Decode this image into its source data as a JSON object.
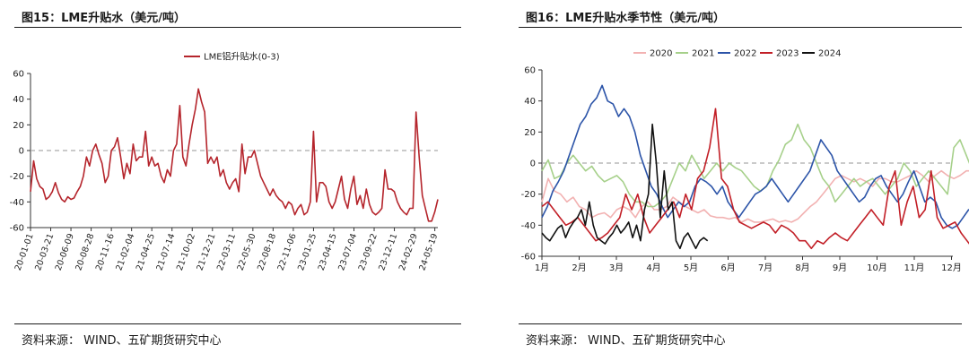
{
  "panels": [
    {
      "title": "图15：LME升贴水（美元/吨）",
      "source": "资料来源： WIND、五矿期货研究中心",
      "chart_data": {
        "type": "line",
        "legend_position": "top",
        "ylim": [
          -60,
          60
        ],
        "yticks": [
          60,
          40,
          20,
          0,
          -20,
          -40,
          -60
        ],
        "xticks": [
          "20-01-01",
          "20-03-21",
          "20-06-09",
          "20-08-28",
          "20-11-16",
          "21-02-04",
          "21-04-25",
          "21-07-14",
          "21-10-02",
          "21-12-21",
          "22-03-11",
          "22-05-30",
          "22-08-18",
          "22-11-06",
          "23-01-25",
          "23-04-15",
          "23-07-04",
          "23-09-22",
          "23-12-11",
          "24-02-29",
          "24-05-19"
        ],
        "zero_line": true,
        "series": [
          {
            "name": "LME铝升贴水(0-3)",
            "color": "#b5252c",
            "x_start": "2020-01-01",
            "x_end": "2024-05-31",
            "values": [
              -32,
              -8,
              -22,
              -28,
              -30,
              -38,
              -36,
              -32,
              -25,
              -33,
              -38,
              -40,
              -36,
              -38,
              -37,
              -32,
              -28,
              -20,
              -5,
              -12,
              0,
              5,
              -3,
              -10,
              -25,
              -20,
              0,
              3,
              10,
              -5,
              -22,
              -10,
              -18,
              5,
              -8,
              -5,
              -5,
              15,
              -12,
              -5,
              -12,
              -10,
              -20,
              -25,
              -15,
              -20,
              0,
              5,
              35,
              -5,
              -12,
              5,
              20,
              32,
              48,
              38,
              30,
              -10,
              -5,
              -10,
              -5,
              -20,
              -15,
              -25,
              -30,
              -25,
              -22,
              -32,
              5,
              -18,
              -5,
              -5,
              0,
              -10,
              -20,
              -25,
              -30,
              -35,
              -30,
              -35,
              -38,
              -40,
              -45,
              -40,
              -42,
              -50,
              -45,
              -42,
              -50,
              -48,
              -40,
              15,
              -40,
              -25,
              -25,
              -28,
              -40,
              -45,
              -40,
              -30,
              -20,
              -38,
              -45,
              -30,
              -20,
              -42,
              -35,
              -45,
              -30,
              -42,
              -48,
              -50,
              -48,
              -45,
              -15,
              -30,
              -30,
              -32,
              -40,
              -45,
              -48,
              -50,
              -45,
              -45,
              30,
              -5,
              -35,
              -45,
              -55,
              -55,
              -48,
              -38
            ]
          }
        ]
      }
    },
    {
      "title": "图16：LME升贴水季节性（美元/吨）",
      "source": "资料来源： WIND、五矿期货研究中心",
      "chart_data": {
        "type": "line",
        "legend_position": "top",
        "ylim": [
          -60,
          60
        ],
        "yticks": [
          60,
          40,
          20,
          0,
          -20,
          -40,
          -60
        ],
        "xticks": [
          "1月",
          "2月",
          "3月",
          "4月",
          "5月",
          "6月",
          "7月",
          "8月",
          "9月",
          "10月",
          "11月",
          "12月"
        ],
        "zero_line": true,
        "series": [
          {
            "name": "2020",
            "color": "#f2b2b2",
            "start_month": 1,
            "end_month": 12.9,
            "values": [
              -25,
              -10,
              -18,
              -20,
              -25,
              -22,
              -28,
              -30,
              -35,
              -33,
              -32,
              -35,
              -30,
              -28,
              -30,
              -35,
              -28,
              -25,
              -30,
              -30,
              -28,
              -22,
              -25,
              -28,
              -30,
              -32,
              -30,
              -34,
              -35,
              -35,
              -36,
              -35,
              -38,
              -36,
              -38,
              -38,
              -37,
              -36,
              -38,
              -37,
              -38,
              -36,
              -32,
              -28,
              -25,
              -20,
              -15,
              -10,
              -8,
              -10,
              -12,
              -10,
              -12,
              -15,
              -10,
              -10,
              -12,
              -12,
              -10,
              -8,
              -5,
              -8,
              -12,
              -8,
              -5,
              -8,
              -10,
              -8,
              -5,
              -5,
              -6,
              -5
            ]
          },
          {
            "name": "2021",
            "color": "#a6d08a",
            "start_month": 1,
            "end_month": 12.9,
            "values": [
              -5,
              2,
              -10,
              -8,
              0,
              5,
              0,
              -5,
              -2,
              -8,
              -12,
              -10,
              -8,
              -12,
              -20,
              -25,
              -25,
              -28,
              -28,
              -25,
              -20,
              -10,
              0,
              -5,
              5,
              -2,
              -10,
              -5,
              0,
              -5,
              0,
              -3,
              -5,
              -10,
              -15,
              -18,
              -15,
              -5,
              2,
              12,
              15,
              25,
              15,
              10,
              0,
              -10,
              -15,
              -25,
              -20,
              -15,
              -10,
              -15,
              -12,
              -10,
              -15,
              -20,
              -15,
              -10,
              0,
              -5,
              -15,
              -10,
              -5,
              -10,
              -15,
              -20,
              10,
              15,
              5,
              -5,
              -25,
              5
            ]
          },
          {
            "name": "2022",
            "color": "#2c54a8",
            "start_month": 1,
            "end_month": 12.9,
            "values": [
              -35,
              -28,
              -18,
              -12,
              -5,
              5,
              15,
              25,
              30,
              38,
              42,
              50,
              40,
              38,
              30,
              35,
              30,
              20,
              5,
              -5,
              -15,
              -20,
              -28,
              -35,
              -30,
              -25,
              -28,
              -25,
              -15,
              -10,
              -12,
              -15,
              -20,
              -15,
              -25,
              -30,
              -35,
              -30,
              -25,
              -20,
              -18,
              -15,
              -10,
              -15,
              -20,
              -25,
              -20,
              -15,
              -10,
              -5,
              5,
              15,
              10,
              5,
              -5,
              -10,
              -15,
              -20,
              -25,
              -22,
              -15,
              -10,
              -8,
              -15,
              -20,
              -25,
              -20,
              -12,
              -5,
              -15,
              -25,
              -22,
              -25,
              -35,
              -40,
              -42,
              -40,
              -35,
              -30,
              -30,
              -30,
              -28
            ]
          },
          {
            "name": "2023",
            "color": "#c21f27",
            "start_month": 1,
            "end_month": 12.9,
            "values": [
              -28,
              -25,
              -30,
              -35,
              -40,
              -38,
              -35,
              -40,
              -45,
              -50,
              -48,
              -45,
              -40,
              -35,
              -20,
              -30,
              -20,
              -35,
              -45,
              -40,
              -35,
              -30,
              -25,
              -35,
              -20,
              -30,
              -10,
              -5,
              10,
              35,
              -10,
              -15,
              -30,
              -38,
              -40,
              -42,
              -40,
              -38,
              -40,
              -45,
              -40,
              -42,
              -45,
              -50,
              -50,
              -55,
              -50,
              -52,
              -48,
              -45,
              -48,
              -50,
              -45,
              -40,
              -35,
              -30,
              -35,
              -40,
              -15,
              -5,
              -40,
              -25,
              -15,
              -35,
              -30,
              -5,
              -35,
              -42,
              -40,
              -38,
              -45,
              -50,
              -55,
              -45,
              -42
            ]
          },
          {
            "name": "2024",
            "color": "#111111",
            "start_month": 1,
            "end_month": 5.45,
            "values": [
              -45,
              -48,
              -50,
              -46,
              -42,
              -40,
              -48,
              -42,
              -38,
              -35,
              -30,
              -40,
              -25,
              -40,
              -48,
              -50,
              -52,
              -48,
              -45,
              -40,
              -45,
              -42,
              -38,
              -48,
              -40,
              -50,
              -30,
              -20,
              25,
              0,
              -35,
              -5,
              -30,
              -25,
              -50,
              -55,
              -48,
              -45,
              -50,
              -55,
              -50,
              -48,
              -50
            ]
          }
        ]
      }
    }
  ]
}
